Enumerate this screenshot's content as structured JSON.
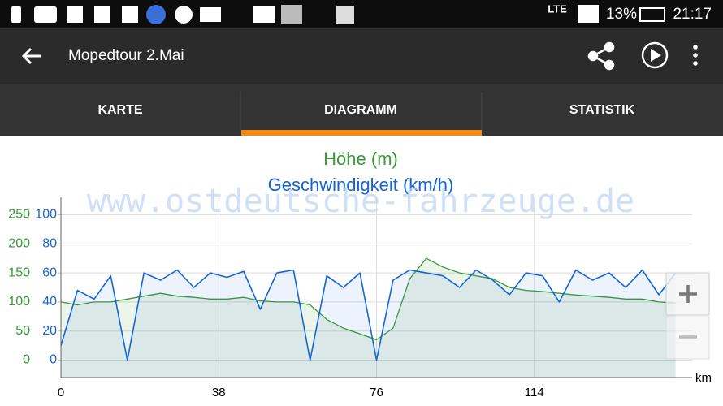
{
  "status_bar": {
    "network": "LTE",
    "battery": "13%",
    "time": "21:17"
  },
  "app_bar": {
    "title": "Mopedtour 2.Mai"
  },
  "tabs": [
    "KARTE",
    "DIAGRAMM",
    "STATISTIK"
  ],
  "watermark": "www.ostdeutsche-fahrzeuge.de",
  "chart_data": {
    "type": "line",
    "x_label": "km",
    "x": [
      0,
      4,
      8,
      12,
      16,
      20,
      24,
      28,
      32,
      36,
      40,
      44,
      48,
      52,
      56,
      60,
      64,
      68,
      72,
      76,
      80,
      84,
      88,
      92,
      96,
      100,
      104,
      108,
      112,
      116,
      120,
      124,
      128,
      132,
      136,
      140,
      144,
      148
    ],
    "xlim": [
      0,
      152
    ],
    "xticks": [
      0,
      38,
      76,
      114
    ],
    "ylim": [
      -30,
      280
    ],
    "yticks": [
      0,
      50,
      100,
      150,
      200,
      250
    ],
    "y2lim": [
      -12,
      112
    ],
    "y2ticks": [
      0,
      20,
      40,
      60,
      80,
      100
    ],
    "grid": true,
    "series": [
      {
        "name": "Höhe (m)",
        "color": "#3a9a35",
        "values": [
          100,
          95,
          100,
          100,
          105,
          110,
          115,
          110,
          108,
          105,
          105,
          108,
          102,
          100,
          100,
          95,
          70,
          55,
          45,
          35,
          55,
          140,
          175,
          160,
          150,
          145,
          140,
          125,
          120,
          118,
          115,
          112,
          110,
          108,
          105,
          105,
          100,
          98
        ]
      },
      {
        "name": "Geschwindigkeit (km/h)",
        "color": "#1565d8",
        "axis": "y2",
        "values": [
          10,
          48,
          42,
          58,
          0,
          60,
          55,
          62,
          50,
          60,
          57,
          61,
          35,
          60,
          62,
          0,
          58,
          50,
          60,
          0,
          55,
          62,
          60,
          58,
          50,
          62,
          55,
          45,
          60,
          58,
          40,
          62,
          55,
          60,
          50,
          62,
          45,
          60
        ]
      }
    ]
  }
}
